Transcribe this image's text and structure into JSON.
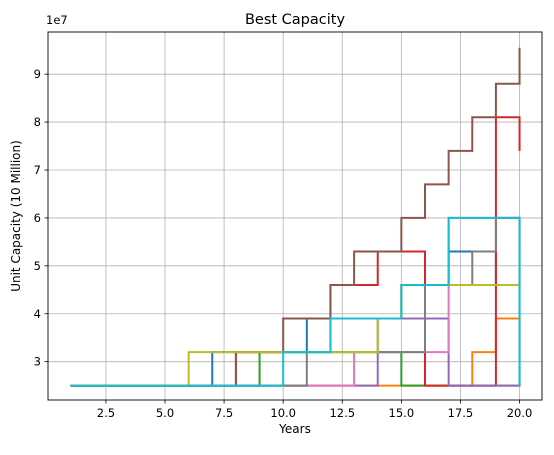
{
  "chart_data": {
    "type": "line",
    "title": "Best Capacity",
    "xlabel": "Years",
    "ylabel": "Unit Capacity (10 Million)",
    "y_offset_label": "1e7",
    "x_ticks": [
      2.5,
      5.0,
      7.5,
      10.0,
      12.5,
      15.0,
      17.5,
      20.0
    ],
    "x_tick_labels": [
      "2.5",
      "5.0",
      "7.5",
      "10.0",
      "12.5",
      "15.0",
      "17.5",
      "20.0"
    ],
    "y_ticks": [
      30000000,
      40000000,
      50000000,
      60000000,
      70000000,
      80000000,
      90000000
    ],
    "y_tick_labels": [
      "3",
      "4",
      "5",
      "6",
      "7",
      "8",
      "9"
    ],
    "xlim": [
      0.05,
      20.95
    ],
    "ylim": [
      22000000,
      98800000
    ],
    "grid": true,
    "legend": "none",
    "series": [
      {
        "color": "#1f77b4",
        "x": [
          1,
          7,
          7,
          11,
          11,
          15,
          15,
          17,
          17,
          19,
          19,
          20,
          20
        ],
        "y": [
          25000000,
          25000000,
          32000000,
          32000000,
          39000000,
          39000000,
          46000000,
          46000000,
          53000000,
          53000000,
          46000000,
          46000000,
          39000000
        ]
      },
      {
        "color": "#ff7f0e",
        "x": [
          1,
          18,
          18,
          19,
          19,
          20,
          20
        ],
        "y": [
          25000000,
          25000000,
          32000000,
          32000000,
          39000000,
          39000000,
          32000000
        ]
      },
      {
        "color": "#2ca02c",
        "x": [
          1,
          9,
          9,
          15,
          15,
          20,
          20
        ],
        "y": [
          25000000,
          25000000,
          32000000,
          32000000,
          25000000,
          25000000,
          32000000
        ]
      },
      {
        "color": "#d62728",
        "x": [
          1,
          8,
          8,
          12,
          12,
          14,
          14,
          16,
          16,
          19,
          19,
          20,
          20
        ],
        "y": [
          25000000,
          25000000,
          32000000,
          32000000,
          46000000,
          46000000,
          53000000,
          53000000,
          25000000,
          25000000,
          81000000,
          81000000,
          74000000
        ]
      },
      {
        "color": "#9467bd",
        "x": [
          1,
          14,
          14,
          17,
          17,
          20,
          20
        ],
        "y": [
          25000000,
          25000000,
          39000000,
          39000000,
          25000000,
          25000000,
          39000000
        ]
      },
      {
        "color": "#8c564b",
        "x": [
          1,
          8,
          8,
          10,
          10,
          12,
          12,
          13,
          13,
          15,
          15,
          16,
          16,
          17,
          17,
          18,
          18,
          19,
          19,
          20,
          20
        ],
        "y": [
          25000000,
          25000000,
          32000000,
          32000000,
          39000000,
          39000000,
          46000000,
          46000000,
          53000000,
          53000000,
          60000000,
          60000000,
          67000000,
          67000000,
          74000000,
          74000000,
          81000000,
          81000000,
          88000000,
          88000000,
          95500000
        ]
      },
      {
        "color": "#e377c2",
        "x": [
          1,
          13,
          13,
          17,
          17,
          20,
          20
        ],
        "y": [
          25000000,
          25000000,
          32000000,
          32000000,
          60000000,
          60000000,
          53000000
        ]
      },
      {
        "color": "#7f7f7f",
        "x": [
          1,
          11,
          11,
          16,
          16,
          18,
          18,
          19,
          19,
          20,
          20
        ],
        "y": [
          25000000,
          25000000,
          32000000,
          32000000,
          46000000,
          46000000,
          53000000,
          53000000,
          60000000,
          60000000,
          46000000
        ]
      },
      {
        "color": "#bcbd22",
        "x": [
          1,
          6,
          6,
          14,
          14,
          15,
          15,
          20,
          20
        ],
        "y": [
          25000000,
          25000000,
          32000000,
          32000000,
          39000000,
          39000000,
          46000000,
          46000000,
          53000000
        ]
      },
      {
        "color": "#17becf",
        "x": [
          1,
          10,
          10,
          12,
          12,
          15,
          15,
          17,
          17,
          20,
          20
        ],
        "y": [
          25000000,
          25000000,
          32000000,
          32000000,
          39000000,
          39000000,
          46000000,
          46000000,
          60000000,
          60000000,
          25000000
        ]
      }
    ]
  }
}
